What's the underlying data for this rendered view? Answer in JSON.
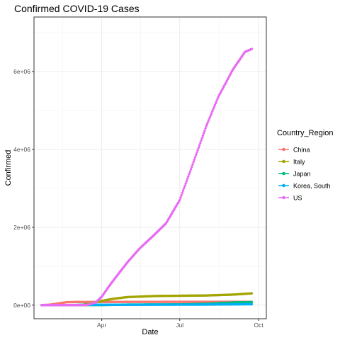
{
  "chart_data": {
    "type": "line",
    "title": "Confirmed COVID-19 Cases",
    "xlabel": "Date",
    "ylabel": "Confirmed",
    "x_ticks": [
      {
        "label": "Apr",
        "date": "2020-04-01"
      },
      {
        "label": "Jul",
        "date": "2020-07-01"
      },
      {
        "label": "Oct",
        "date": "2020-10-01"
      }
    ],
    "y_ticks": [
      {
        "label": "0e+00",
        "value": 0
      },
      {
        "label": "2e+06",
        "value": 2000000
      },
      {
        "label": "4e+06",
        "value": 4000000
      },
      {
        "label": "6e+06",
        "value": 6000000
      }
    ],
    "xlim": [
      "2020-01-13",
      "2020-10-10"
    ],
    "ylim": [
      -350000,
      7400000
    ],
    "grid": true,
    "legend": {
      "title": "Country_Region",
      "placement": "right"
    },
    "series": [
      {
        "name": "China",
        "color": "#F8766D",
        "points": [
          [
            "2020-01-22",
            548
          ],
          [
            "2020-01-31",
            9800
          ],
          [
            "2020-02-10",
            42000
          ],
          [
            "2020-02-20",
            75000
          ],
          [
            "2020-03-01",
            80000
          ],
          [
            "2020-04-01",
            82300
          ],
          [
            "2020-06-01",
            84000
          ],
          [
            "2020-09-23",
            85300
          ]
        ]
      },
      {
        "name": "Italy",
        "color": "#A3A500",
        "points": [
          [
            "2020-01-22",
            0
          ],
          [
            "2020-02-21",
            20
          ],
          [
            "2020-03-01",
            1700
          ],
          [
            "2020-03-10",
            10000
          ],
          [
            "2020-03-20",
            47000
          ],
          [
            "2020-04-01",
            110000
          ],
          [
            "2020-04-15",
            165000
          ],
          [
            "2020-05-01",
            206000
          ],
          [
            "2020-06-01",
            233000
          ],
          [
            "2020-07-01",
            241000
          ],
          [
            "2020-08-01",
            248000
          ],
          [
            "2020-09-01",
            270000
          ],
          [
            "2020-09-23",
            302000
          ]
        ]
      },
      {
        "name": "Japan",
        "color": "#00BF7D",
        "points": [
          [
            "2020-01-22",
            2
          ],
          [
            "2020-03-01",
            250
          ],
          [
            "2020-04-01",
            2400
          ],
          [
            "2020-05-01",
            14000
          ],
          [
            "2020-06-01",
            17000
          ],
          [
            "2020-07-01",
            19000
          ],
          [
            "2020-08-01",
            35000
          ],
          [
            "2020-09-01",
            68000
          ],
          [
            "2020-09-23",
            79000
          ]
        ]
      },
      {
        "name": "Korea, South",
        "color": "#00B0F6",
        "points": [
          [
            "2020-01-22",
            1
          ],
          [
            "2020-02-20",
            100
          ],
          [
            "2020-03-01",
            3700
          ],
          [
            "2020-03-10",
            7500
          ],
          [
            "2020-04-01",
            9900
          ],
          [
            "2020-06-01",
            11500
          ],
          [
            "2020-08-01",
            14400
          ],
          [
            "2020-09-23",
            23200
          ]
        ]
      },
      {
        "name": "US",
        "color": "#E76BF3",
        "points": [
          [
            "2020-01-22",
            1
          ],
          [
            "2020-03-01",
            80
          ],
          [
            "2020-03-15",
            3500
          ],
          [
            "2020-03-25",
            70000
          ],
          [
            "2020-04-01",
            215000
          ],
          [
            "2020-04-10",
            500000
          ],
          [
            "2020-04-20",
            790000
          ],
          [
            "2020-05-01",
            1100000
          ],
          [
            "2020-05-15",
            1450000
          ],
          [
            "2020-06-01",
            1800000
          ],
          [
            "2020-06-15",
            2100000
          ],
          [
            "2020-07-01",
            2700000
          ],
          [
            "2020-07-15",
            3550000
          ],
          [
            "2020-08-01",
            4600000
          ],
          [
            "2020-08-15",
            5350000
          ],
          [
            "2020-09-01",
            6050000
          ],
          [
            "2020-09-15",
            6500000
          ],
          [
            "2020-09-23",
            6580000
          ]
        ]
      }
    ]
  }
}
